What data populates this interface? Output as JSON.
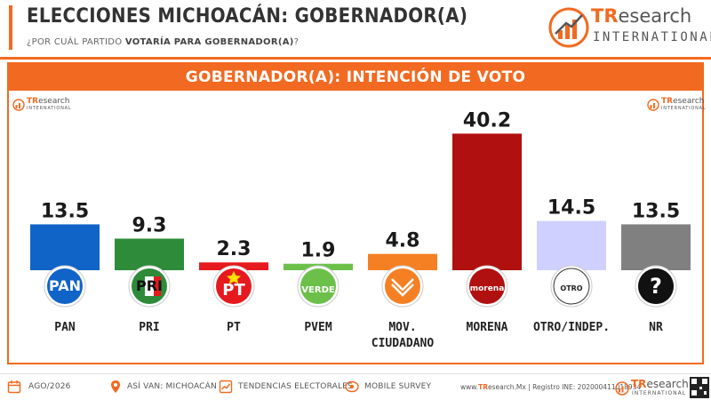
{
  "header": {
    "title": "ELECCIONES MICHOACÁN: GOBERNADOR(A)",
    "subtitle_prefix": "¿POR CUÁL PARTIDO ",
    "subtitle_bold": "VOTARÍA PARA GOBERNADOR(A)",
    "subtitle_suffix": "?"
  },
  "brand": {
    "name_accent": "TR",
    "name_rest": "esearch",
    "tagline": "INTERNATIONAL"
  },
  "panel": {
    "heading": "GOBERNADOR(A): INTENCIÓN DE VOTO"
  },
  "chart_data": {
    "type": "bar",
    "title": "GOBERNADOR(A): INTENCIÓN DE VOTO",
    "xlabel": "",
    "ylabel": "",
    "ylim": [
      0,
      45
    ],
    "grid": false,
    "categories": [
      "PAN",
      "PRI",
      "PT",
      "PVEM",
      "MOV. CIUDADANO",
      "MORENA",
      "OTRO/INDEP.",
      "NR"
    ],
    "values": [
      13.5,
      9.3,
      2.3,
      1.9,
      4.8,
      40.2,
      14.5,
      13.5
    ],
    "value_labels": [
      "13.5",
      "9.3",
      "2.3",
      "1.9",
      "4.8",
      "40.2",
      "14.5",
      "13.5"
    ],
    "category_label_lines": [
      [
        "PAN"
      ],
      [
        "PRI"
      ],
      [
        "PT"
      ],
      [
        "PVEM"
      ],
      [
        "MOV.",
        "CIUDADANO"
      ],
      [
        "MORENA"
      ],
      [
        "OTRO/INDEP."
      ],
      [
        "NR"
      ]
    ],
    "colors": [
      "#1064c8",
      "#2e8b3a",
      "#e6191f",
      "#6cc04a",
      "#f58024",
      "#b0100f",
      "#cfd0ff",
      "#808080"
    ],
    "logo_texts": [
      "PAN",
      "PRI",
      "PT",
      "VERDE",
      "",
      "morena",
      "OTRO",
      "?"
    ]
  },
  "footer": {
    "date": "AGO/2026",
    "item2": "ASÍ VAN: MICHOACÁN",
    "item3": "TENDENCIAS ELECTORALES",
    "item4": "MOBILE SURVEY",
    "site_prefix": "www.",
    "site_accent": "TR",
    "site_rest": "esearch.Mx | Registro INE: 202000411018934"
  },
  "colors": {
    "accent": "#f26a21",
    "text_dark": "#222222"
  }
}
